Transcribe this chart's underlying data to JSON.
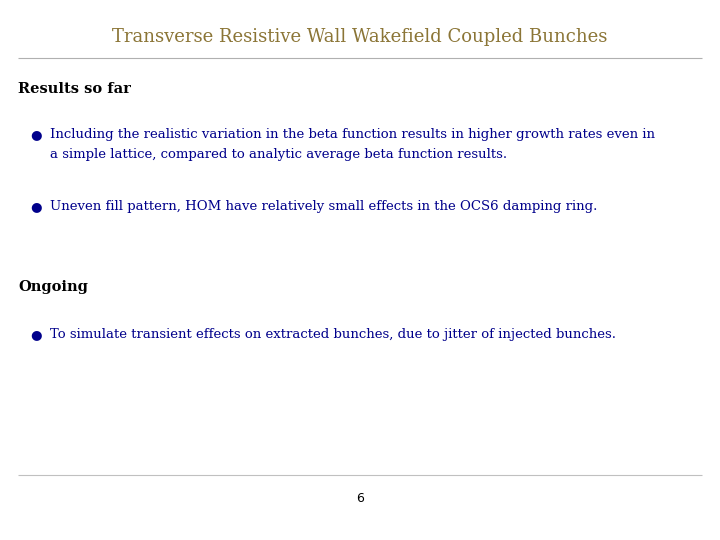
{
  "title": "Transverse Resistive Wall Wakefield Coupled Bunches",
  "title_color": "#8B7536",
  "title_fontsize": 13,
  "bg_color": "#ffffff",
  "section1_heading": "Results so far",
  "section1_heading_color": "#000000",
  "section1_heading_fontsize": 10.5,
  "bullet_color": "#00008B",
  "bullet_fontsize": 9.5,
  "bullet1_line1": "Including the realistic variation in the beta function results in higher growth rates even in",
  "bullet1_line2": "a simple lattice, compared to analytic average beta function results.",
  "bullet2": "Uneven fill pattern, HOM have relatively small effects in the OCS6 damping ring.",
  "section2_heading": "Ongoing",
  "section2_heading_color": "#000000",
  "section2_heading_fontsize": 10.5,
  "bullet3": "To simulate transient effects on extracted bunches, due to jitter of injected bunches.",
  "page_number": "6",
  "page_number_color": "#000000",
  "separator_color": "#b0b0b0",
  "footer_separator_color": "#c0c0c0",
  "figwidth": 7.2,
  "figheight": 5.4,
  "dpi": 100
}
